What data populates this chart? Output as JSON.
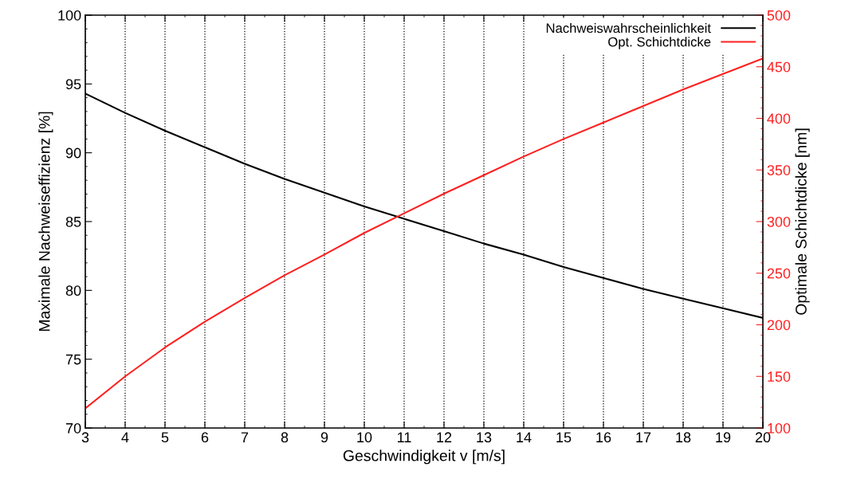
{
  "chart_data": {
    "type": "line",
    "xlabel": "Geschwindigkeit v [m/s]",
    "ylabel": "Maximale Nachweiseffizienz [%]",
    "y2label": "Optimale Schichtdicke [nm]",
    "x": [
      3,
      4,
      5,
      6,
      7,
      8,
      9,
      10,
      11,
      12,
      13,
      14,
      15,
      16,
      17,
      18,
      19,
      20
    ],
    "series": [
      {
        "name": "Nachweiswahrscheinlichkeit",
        "color": "#000000",
        "values": [
          94.3,
          92.9,
          91.6,
          90.4,
          89.2,
          88.1,
          87.1,
          86.1,
          85.2,
          84.3,
          83.4,
          82.6,
          81.7,
          80.9,
          80.1,
          79.4,
          78.7,
          78.0
        ]
      },
      {
        "name": "Opt. Schichtdicke",
        "color": "#ff2020",
        "axis": "y2",
        "values": [
          119,
          150,
          178,
          203,
          226,
          248,
          268,
          289,
          308,
          327,
          345,
          363,
          380,
          396,
          412,
          428,
          443,
          458
        ]
      }
    ],
    "xlim": [
      3,
      20
    ],
    "xticks": [
      3,
      4,
      5,
      6,
      7,
      8,
      9,
      10,
      11,
      12,
      13,
      14,
      15,
      16,
      17,
      18,
      19,
      20
    ],
    "ylim": [
      70,
      100
    ],
    "yticks": [
      70,
      75,
      80,
      85,
      90,
      95,
      100
    ],
    "y2lim": [
      100,
      500
    ],
    "y2ticks": [
      100,
      150,
      200,
      250,
      300,
      350,
      400,
      450,
      500
    ],
    "grid": "x",
    "legend": "top right",
    "line_style": "solid",
    "marker": "none"
  }
}
